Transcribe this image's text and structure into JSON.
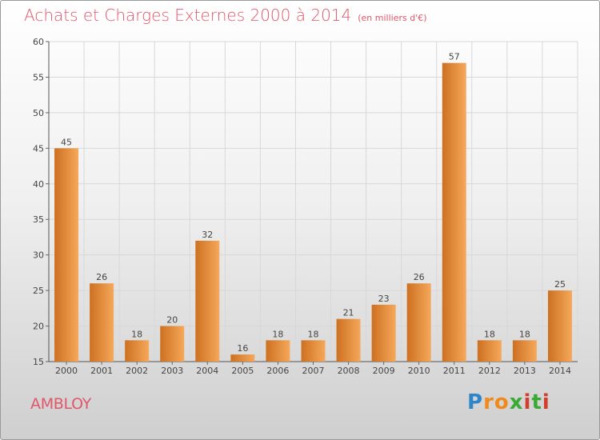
{
  "header": {
    "title": "Achats et Charges Externes 2000 à 2014",
    "unit": "(en milliers d'€)"
  },
  "footer": {
    "town": "AMBLOY",
    "logo": [
      "P",
      "r",
      "o",
      "x",
      "i",
      "t",
      "i"
    ]
  },
  "colors": {
    "bar_light": "#f6a85a",
    "bar_dark": "#cd7021",
    "title": "#e0576a",
    "logo": [
      "#2e86c8",
      "#f08a1c",
      "#f08a1c",
      "#3aaa35",
      "#d43c2b",
      "#3aaa35",
      "#d43c2b"
    ]
  },
  "chart_data": {
    "type": "bar",
    "title": "Achats et Charges Externes 2000 à 2014",
    "ylabel": "en milliers d'€",
    "xlabel": "",
    "categories": [
      "2000",
      "2001",
      "2002",
      "2003",
      "2004",
      "2005",
      "2006",
      "2007",
      "2008",
      "2009",
      "2010",
      "2011",
      "2012",
      "2013",
      "2014"
    ],
    "values": [
      45,
      26,
      18,
      20,
      32,
      16,
      18,
      18,
      21,
      23,
      26,
      57,
      18,
      18,
      25
    ],
    "ylim": [
      15,
      60
    ],
    "yticks": [
      15,
      20,
      25,
      30,
      35,
      40,
      45,
      50,
      55,
      60
    ],
    "grid": true
  }
}
